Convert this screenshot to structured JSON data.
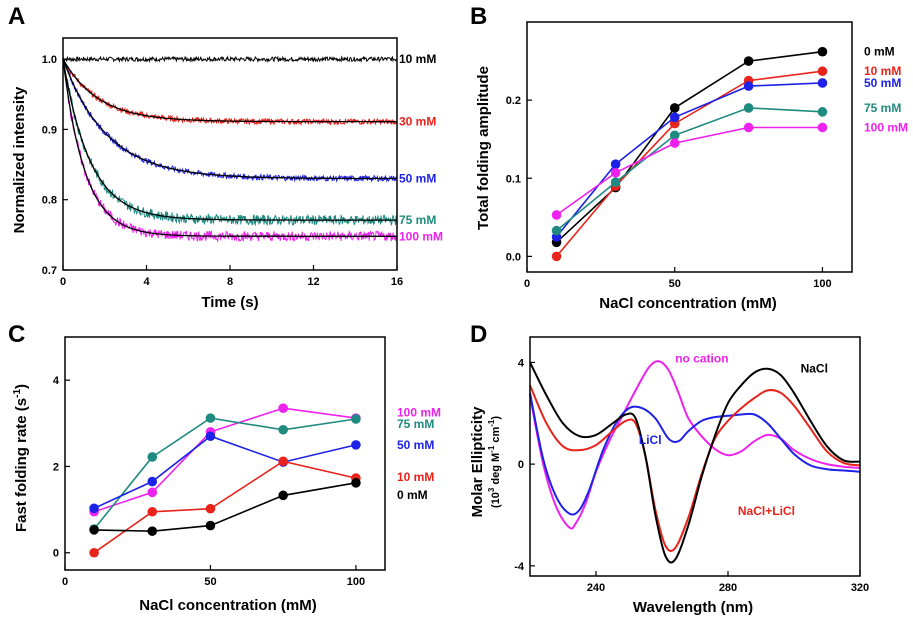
{
  "figure": {
    "panels": [
      "A",
      "B",
      "C",
      "D"
    ]
  },
  "colors": {
    "black": "#000000",
    "red": "#e8231b",
    "blue": "#1e22e6",
    "teal": "#1f8a80",
    "magenta": "#ee22ee"
  },
  "chart_data": [
    {
      "panel": "A",
      "type": "line",
      "xlabel": "Time (s)",
      "ylabel": "Normalized intensity",
      "xlim": [
        0,
        16
      ],
      "ylim": [
        0.7,
        1.03
      ],
      "xticks": [
        0,
        4,
        8,
        12,
        16
      ],
      "yticks": [
        0.7,
        0.8,
        0.9,
        1.0
      ],
      "ytick_labels": [
        "0.7",
        "0.8",
        "0.9",
        "1.0"
      ],
      "series": [
        {
          "name": "10 mM",
          "color": "#000000",
          "plateau": 1.0,
          "tau": 1.0,
          "noise": 0.003
        },
        {
          "name": "30 mM",
          "color": "#e8231b",
          "plateau": 0.911,
          "tau": 1.7,
          "noise": 0.004
        },
        {
          "name": "50 mM",
          "color": "#1e22e6",
          "plateau": 0.83,
          "tau": 2.1,
          "noise": 0.004
        },
        {
          "name": "75 mM",
          "color": "#1f8a80",
          "plateau": 0.771,
          "tau": 1.3,
          "noise": 0.007
        },
        {
          "name": "100 mM",
          "color": "#ee22ee",
          "plateau": 0.748,
          "tau": 1.05,
          "noise": 0.007
        }
      ],
      "label_y": [
        1.0,
        0.911,
        0.83,
        0.771,
        0.748
      ]
    },
    {
      "panel": "B",
      "type": "line",
      "xlabel": "NaCl concentration (mM)",
      "ylabel": "Total folding amplitude",
      "xlim": [
        0,
        110
      ],
      "ylim": [
        -0.02,
        0.3
      ],
      "xticks": [
        0,
        50,
        100
      ],
      "yticks": [
        0.0,
        0.1,
        0.2
      ],
      "ytick_labels": [
        "0.0",
        "0.1",
        "0.2"
      ],
      "x": [
        10,
        30,
        50,
        75,
        100
      ],
      "series": [
        {
          "name": "0 mM",
          "color": "#000000",
          "values": [
            0.018,
            0.088,
            0.19,
            0.25,
            0.262
          ]
        },
        {
          "name": "10 mM",
          "color": "#e8231b",
          "values": [
            0.0,
            0.09,
            0.17,
            0.225,
            0.237
          ]
        },
        {
          "name": "50 mM",
          "color": "#1e22e6",
          "values": [
            0.025,
            0.118,
            0.178,
            0.218,
            0.222
          ]
        },
        {
          "name": "75 mM",
          "color": "#1f8a80",
          "values": [
            0.033,
            0.095,
            0.155,
            0.19,
            0.185
          ]
        },
        {
          "name": "100 mM",
          "color": "#ee22ee",
          "values": [
            0.053,
            0.107,
            0.145,
            0.165,
            0.165
          ]
        }
      ],
      "label_y": [
        0.262,
        0.237,
        0.222,
        0.19,
        0.165
      ]
    },
    {
      "panel": "C",
      "type": "line",
      "xlabel": "NaCl concentration (mM)",
      "ylabel": "Fast folding rate (s",
      "ylabel_sup": "-1",
      "ylabel_end": ")",
      "xlim": [
        0,
        110
      ],
      "ylim": [
        -0.4,
        5.0
      ],
      "xticks": [
        0,
        50,
        100
      ],
      "yticks": [
        0,
        2,
        4
      ],
      "ytick_labels": [
        "0",
        "2",
        "4"
      ],
      "x": [
        10,
        30,
        50,
        75,
        100
      ],
      "series": [
        {
          "name": "100 mM",
          "color": "#ee22ee",
          "values": [
            0.95,
            1.4,
            2.8,
            3.35,
            3.12
          ]
        },
        {
          "name": "75 mM",
          "color": "#1f8a80",
          "values": [
            0.55,
            2.22,
            3.12,
            2.85,
            3.1
          ]
        },
        {
          "name": "50 mM",
          "color": "#1e22e6",
          "values": [
            1.03,
            1.65,
            2.7,
            2.1,
            2.5
          ]
        },
        {
          "name": "10 mM",
          "color": "#e8231b",
          "values": [
            0.0,
            0.95,
            1.02,
            2.12,
            1.73
          ]
        },
        {
          "name": "0 mM",
          "color": "#000000",
          "values": [
            0.53,
            0.5,
            0.63,
            1.33,
            1.62
          ]
        }
      ],
      "label_y": [
        3.25,
        2.98,
        2.5,
        1.75,
        1.34
      ]
    },
    {
      "panel": "D",
      "type": "line",
      "xlabel": "Wavelength (nm)",
      "ylabel": "Molar Ellipticity",
      "ylabel2_parts": [
        "(10",
        "3",
        " deg M",
        "-1",
        " cm",
        "-1",
        ")"
      ],
      "xlim": [
        220,
        320
      ],
      "ylim": [
        -4.4,
        5.0
      ],
      "xticks": [
        240,
        280,
        320
      ],
      "yticks": [
        -4,
        0,
        4
      ],
      "ytick_labels": [
        "-4",
        "0",
        "4"
      ],
      "series": [
        {
          "name": "NaCl",
          "color": "#000000",
          "x": [
            220,
            225,
            230,
            235,
            240,
            245,
            249,
            252,
            255,
            258,
            261,
            264,
            268,
            272,
            276,
            280,
            284,
            288,
            292,
            296,
            300,
            305,
            310,
            315,
            320
          ],
          "values": [
            4.0,
            2.7,
            1.6,
            1.1,
            1.15,
            1.6,
            1.95,
            1.8,
            0.3,
            -2.0,
            -3.6,
            -3.75,
            -2.4,
            -0.5,
            1.1,
            2.4,
            3.1,
            3.6,
            3.75,
            3.5,
            2.8,
            1.7,
            0.7,
            0.15,
            0.1
          ]
        },
        {
          "name": "NaCl+LiCl",
          "color": "#e8231b",
          "x": [
            220,
            225,
            230,
            235,
            240,
            245,
            249,
            252,
            255,
            258,
            261,
            264,
            268,
            272,
            276,
            280,
            284,
            288,
            292,
            296,
            300,
            305,
            310,
            315,
            320
          ],
          "values": [
            3.1,
            1.6,
            0.7,
            0.55,
            0.75,
            1.3,
            1.7,
            1.6,
            0.3,
            -1.8,
            -3.2,
            -3.3,
            -2.1,
            -0.4,
            1.0,
            1.7,
            2.2,
            2.6,
            2.9,
            2.8,
            2.3,
            1.4,
            0.5,
            0.05,
            -0.05
          ]
        },
        {
          "name": "LiCl",
          "color": "#1e22e6",
          "x": [
            220,
            224,
            228,
            232,
            235,
            238,
            242,
            246,
            250,
            254,
            258,
            262,
            265,
            268,
            272,
            276,
            280,
            284,
            288,
            292,
            296,
            300,
            305,
            310,
            315,
            320
          ],
          "values": [
            2.8,
            0.2,
            -1.3,
            -1.95,
            -1.8,
            -1.0,
            0.5,
            1.6,
            2.2,
            2.2,
            1.8,
            1.0,
            0.9,
            1.3,
            1.7,
            1.85,
            1.9,
            1.95,
            1.95,
            1.6,
            1.0,
            0.4,
            -0.05,
            -0.2,
            -0.25,
            -0.3
          ]
        },
        {
          "name": "no cation",
          "color": "#ee22ee",
          "x": [
            220,
            224,
            228,
            232,
            234,
            237,
            240,
            244,
            248,
            252,
            256,
            259,
            262,
            265,
            268,
            272,
            276,
            280,
            284,
            288,
            292,
            296,
            300,
            305,
            310,
            315,
            320
          ],
          "values": [
            2.7,
            0.0,
            -1.7,
            -2.5,
            -2.3,
            -1.5,
            -0.3,
            0.9,
            1.9,
            2.9,
            3.8,
            4.05,
            3.7,
            2.8,
            1.8,
            1.1,
            0.6,
            0.35,
            0.5,
            0.9,
            1.15,
            1.0,
            0.55,
            0.2,
            0.0,
            -0.1,
            -0.15
          ]
        }
      ],
      "labels": [
        {
          "text": "no cation",
          "color": "#ee22ee",
          "x": 264,
          "y": 4.0
        },
        {
          "text": "NaCl",
          "color": "#000000",
          "x": 302,
          "y": 3.6
        },
        {
          "text": "LiCl",
          "color": "#1e22e6",
          "x": 253,
          "y": 0.8
        },
        {
          "text": "NaCl+LiCl",
          "color": "#e8231b",
          "x": 283,
          "y": -2.0
        }
      ]
    }
  ]
}
